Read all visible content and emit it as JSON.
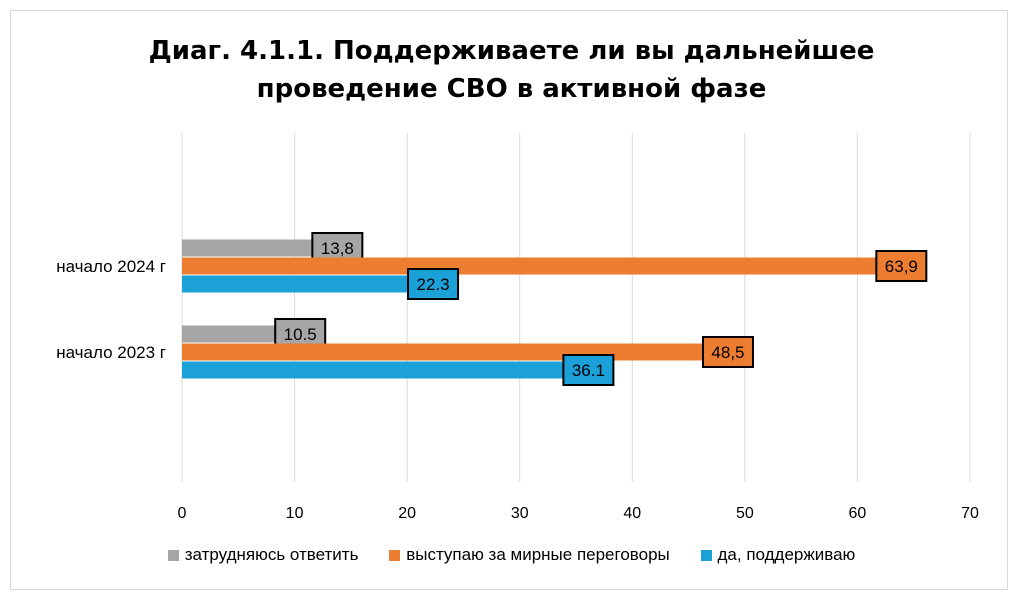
{
  "chart_data": {
    "type": "bar",
    "orientation": "horizontal",
    "title_lines": [
      "Диаг. 4.1.1. Поддерживаете ли вы дальнейшее",
      "проведение СВО в активной фазе"
    ],
    "categories": [
      "начало 2024 г",
      "начало 2023 г"
    ],
    "series": [
      {
        "name": "затрудняюсь ответить",
        "color": "#a6a6a6",
        "values": [
          13.8,
          10.5
        ],
        "labels": [
          "13,8",
          "10.5"
        ]
      },
      {
        "name": "выступаю за мирные переговоры",
        "color": "#ed7d31",
        "values": [
          63.9,
          48.5
        ],
        "labels": [
          "63,9",
          "48,5"
        ]
      },
      {
        "name": "да, поддерживаю",
        "color": "#1ba1d8",
        "values": [
          22.3,
          36.1
        ],
        "labels": [
          "22.3",
          "36.1"
        ]
      }
    ],
    "xlim": [
      0,
      70
    ],
    "xticks": [
      0,
      10,
      20,
      30,
      40,
      50,
      60,
      70
    ],
    "grid": true,
    "legend_position": "bottom"
  }
}
